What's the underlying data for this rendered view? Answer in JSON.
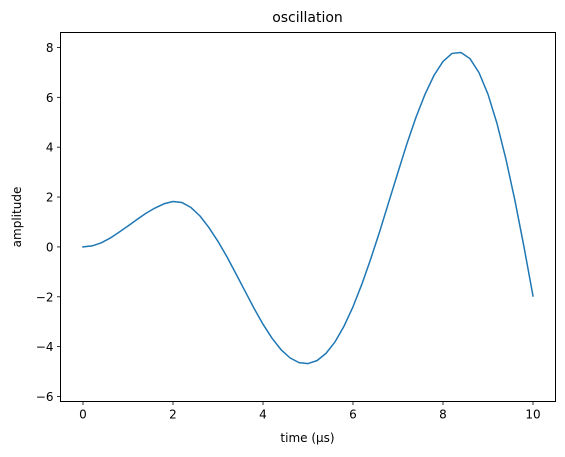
{
  "chart_data": {
    "type": "line",
    "title": "oscillation",
    "xlabel": "time (μs)",
    "ylabel": "amplitude",
    "xlim": [
      -0.5,
      10.5
    ],
    "ylim": [
      -6.2,
      8.6
    ],
    "xticks": [
      0,
      2,
      4,
      6,
      8,
      10
    ],
    "xtick_labels": [
      "0",
      "2",
      "4",
      "6",
      "8",
      "10"
    ],
    "yticks": [
      -6,
      -4,
      -2,
      0,
      2,
      4,
      6,
      8
    ],
    "ytick_labels": [
      "−6",
      "−4",
      "−2",
      "0",
      "2",
      "4",
      "6",
      "8"
    ],
    "grid": false,
    "series": [
      {
        "color": "#1f77b4",
        "x": [
          0.0,
          0.2,
          0.4,
          0.6,
          0.8,
          1.0,
          1.2,
          1.4,
          1.6,
          1.8,
          2.0,
          2.2,
          2.4,
          2.6,
          2.8,
          3.0,
          3.2,
          3.4,
          3.6,
          3.8,
          4.0,
          4.2,
          4.4,
          4.6,
          4.8,
          5.0,
          5.2,
          5.4,
          5.6,
          5.8,
          6.0,
          6.2,
          6.4,
          6.6,
          6.8,
          7.0,
          7.2,
          7.4,
          7.6,
          7.8,
          8.0,
          8.2,
          8.4,
          8.6,
          8.8,
          9.0,
          9.2,
          9.4,
          9.6,
          9.8,
          10.0
        ],
        "y": [
          0.0,
          0.04,
          0.16,
          0.35,
          0.59,
          0.84,
          1.1,
          1.35,
          1.56,
          1.73,
          1.82,
          1.78,
          1.58,
          1.24,
          0.77,
          0.22,
          -0.4,
          -1.08,
          -1.77,
          -2.46,
          -3.1,
          -3.66,
          -4.12,
          -4.45,
          -4.64,
          -4.68,
          -4.56,
          -4.27,
          -3.81,
          -3.18,
          -2.4,
          -1.48,
          -0.45,
          0.66,
          1.83,
          3.0,
          4.15,
          5.2,
          6.12,
          6.88,
          7.44,
          7.76,
          7.8,
          7.55,
          6.99,
          6.12,
          4.95,
          3.51,
          1.85,
          0.0,
          -1.97
        ]
      }
    ]
  }
}
